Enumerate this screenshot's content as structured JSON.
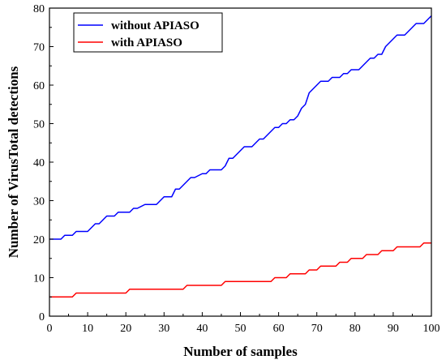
{
  "chart_data": {
    "type": "line",
    "title": "",
    "xlabel": "Number of samples",
    "ylabel": "Number of VirusTotal detections",
    "xlim": [
      0,
      100
    ],
    "ylim": [
      0,
      80
    ],
    "xticks": [
      0,
      10,
      20,
      30,
      40,
      50,
      60,
      70,
      80,
      90,
      100
    ],
    "yticks": [
      0,
      10,
      20,
      30,
      40,
      50,
      60,
      70,
      80
    ],
    "grid": false,
    "legend_position": "top-left",
    "series": [
      {
        "name": "without APIASO",
        "color": "#0000ff",
        "x": [
          0,
          3,
          4,
          6,
          7,
          10,
          11,
          12,
          13,
          14,
          15,
          17,
          18,
          20,
          21,
          22,
          23,
          25,
          28,
          29,
          30,
          31,
          32,
          33,
          34,
          35,
          36,
          37,
          38,
          40,
          41,
          42,
          45,
          46,
          47,
          48,
          49,
          50,
          51,
          53,
          54,
          55,
          56,
          57,
          58,
          59,
          60,
          61,
          62,
          63,
          64,
          65,
          66,
          67,
          68,
          69,
          70,
          71,
          72,
          73,
          74,
          75,
          76,
          77,
          78,
          79,
          80,
          81,
          82,
          83,
          84,
          85,
          86,
          87,
          88,
          89,
          90,
          91,
          92,
          93,
          94,
          95,
          96,
          97,
          98,
          99,
          100
        ],
        "y": [
          20,
          20,
          21,
          21,
          22,
          22,
          23,
          24,
          24,
          25,
          26,
          26,
          27,
          27,
          27,
          28,
          28,
          29,
          29,
          30,
          31,
          31,
          31,
          33,
          33,
          34,
          35,
          36,
          36,
          37,
          37,
          38,
          38,
          39,
          41,
          41,
          42,
          43,
          44,
          44,
          45,
          46,
          46,
          47,
          48,
          49,
          49,
          50,
          50,
          51,
          51,
          52,
          54,
          55,
          58,
          59,
          60,
          61,
          61,
          61,
          62,
          62,
          62,
          63,
          63,
          64,
          64,
          64,
          65,
          66,
          67,
          67,
          68,
          68,
          70,
          71,
          72,
          73,
          73,
          73,
          74,
          75,
          76,
          76,
          76,
          77,
          78
        ]
      },
      {
        "name": "with APIASO",
        "color": "#ff0000",
        "x": [
          0,
          6,
          7,
          20,
          21,
          35,
          36,
          45,
          46,
          58,
          59,
          62,
          63,
          67,
          68,
          70,
          71,
          75,
          76,
          78,
          79,
          82,
          83,
          86,
          87,
          89,
          90,
          91,
          92,
          97,
          98,
          100
        ],
        "y": [
          5,
          5,
          6,
          6,
          7,
          7,
          8,
          8,
          9,
          9,
          10,
          10,
          11,
          11,
          12,
          12,
          13,
          13,
          14,
          14,
          15,
          15,
          16,
          16,
          17,
          17,
          17,
          18,
          18,
          18,
          19,
          19
        ]
      }
    ]
  }
}
